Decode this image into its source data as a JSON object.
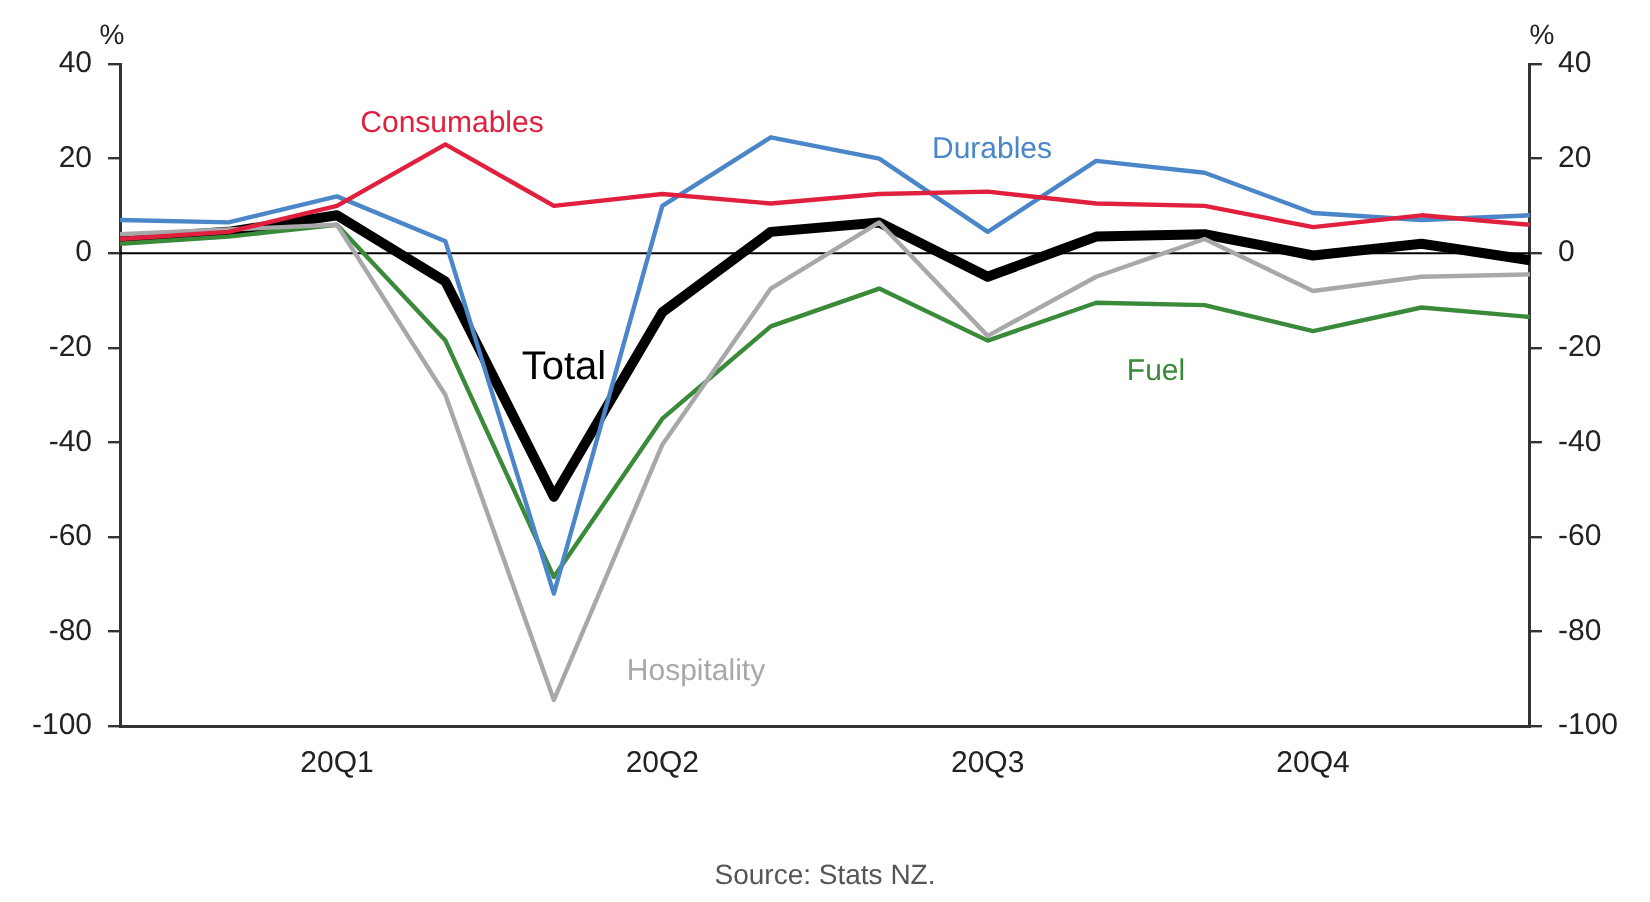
{
  "chart_data": {
    "type": "line",
    "ylabel": "%",
    "y2label": "%",
    "annotations": [
      "Source: Stats NZ."
    ],
    "categories": [
      null,
      null,
      "20Q1",
      null,
      null,
      "20Q2",
      null,
      null,
      "20Q3",
      null,
      null,
      "20Q4",
      null,
      null
    ],
    "series": [
      {
        "name": "Consumables",
        "color": "#e0203c",
        "values": [
          3,
          4.5,
          10,
          23,
          10,
          12.5,
          10.5,
          12.5,
          13,
          10.5,
          10,
          5.5,
          8,
          6
        ]
      },
      {
        "name": "Durables",
        "color": "#4a86c8",
        "values": [
          7,
          6.5,
          12,
          2.5,
          -72,
          10,
          24.5,
          20,
          4.5,
          19.5,
          17,
          8.5,
          7,
          8
        ]
      },
      {
        "name": "Hospitality",
        "color": "#a8a8aa",
        "values": [
          4,
          5,
          6,
          -30,
          -94.5,
          -40.5,
          -7.5,
          6.5,
          -17.5,
          -5,
          3,
          -8,
          -5,
          -4.5
        ]
      },
      {
        "name": "Fuel",
        "color": "#3a8a3a",
        "values": [
          2,
          3.5,
          6,
          -18.5,
          -68.5,
          -35,
          -15.5,
          -7.5,
          -18.5,
          -10.5,
          -11,
          -16.5,
          -11.5,
          -13.5
        ]
      },
      {
        "name": "Total",
        "color": "#000000",
        "values": [
          3,
          4.5,
          8,
          -6,
          -51.5,
          -12.5,
          4.5,
          6.5,
          -5,
          3.5,
          4,
          -0.5,
          2,
          -1.5
        ]
      }
    ],
    "ylim": [
      -100,
      40
    ],
    "yticks": [
      -100,
      -80,
      -60,
      -40,
      -20,
      0,
      20,
      40
    ],
    "y2lim": [
      -100,
      40
    ],
    "y2ticks": [
      -100,
      -80,
      -60,
      -40,
      -20,
      0,
      20,
      40
    ],
    "ref_lines": [
      {
        "axis": "y",
        "value": 0,
        "color": "#000000"
      }
    ],
    "grid": false,
    "legend": false,
    "marker": "none",
    "line_style": "solid"
  }
}
